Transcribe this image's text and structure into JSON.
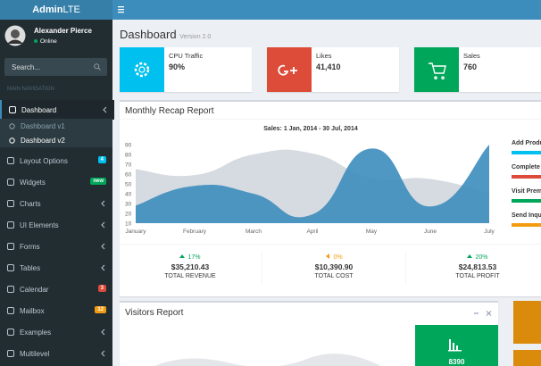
{
  "header": {
    "logo_bold": "Admin",
    "logo_light": "LTE"
  },
  "user": {
    "name": "Alexander Pierce",
    "status": "Online"
  },
  "search": {
    "placeholder": "Search..."
  },
  "nav": {
    "heading": "MAIN NAVIGATION",
    "items": [
      {
        "label": "Dashboard"
      },
      {
        "label": "Layout Options",
        "badge": "4"
      },
      {
        "label": "Widgets",
        "badge": "new"
      },
      {
        "label": "Charts"
      },
      {
        "label": "UI Elements"
      },
      {
        "label": "Forms"
      },
      {
        "label": "Tables"
      },
      {
        "label": "Calendar",
        "badge": "3"
      },
      {
        "label": "Mailbox",
        "badge": "12"
      },
      {
        "label": "Examples"
      },
      {
        "label": "Multilevel"
      }
    ],
    "subitems": [
      "Dashboard v1",
      "Dashboard v2"
    ]
  },
  "page": {
    "title": "Dashboard",
    "subtitle": "Version 2.0"
  },
  "info_boxes": [
    {
      "label": "CPU Traffic",
      "value": "90%"
    },
    {
      "label": "Likes",
      "value": "41,410"
    },
    {
      "label": "Sales",
      "value": "760"
    }
  ],
  "recap": {
    "title": "Monthly Recap Report",
    "goals": [
      "Add Produ",
      "Complete",
      "Visit Prem",
      "Send Inqu"
    ],
    "stats": [
      {
        "change": "17%",
        "amount": "$35,210.43",
        "label": "TOTAL REVENUE"
      },
      {
        "change": "0%",
        "amount": "$10,390.90",
        "label": "TOTAL COST"
      },
      {
        "change": "20%",
        "amount": "$24,813.53",
        "label": "TOTAL PROFIT"
      }
    ]
  },
  "visitors": {
    "title": "Visitors Report",
    "count": "8390"
  },
  "chart_data": {
    "type": "area",
    "title": "Sales: 1 Jan, 2014 - 30 Jul, 2014",
    "categories": [
      "January",
      "February",
      "March",
      "April",
      "May",
      "June",
      "July"
    ],
    "series": [
      {
        "color": "#d2d6de",
        "values": [
          65,
          59,
          80,
          81,
          56,
          55,
          40
        ]
      },
      {
        "color": "#3c8dbc",
        "values": [
          28,
          48,
          40,
          19,
          86,
          27,
          90
        ]
      }
    ],
    "ylim": [
      10,
      90
    ],
    "yticks": [
      10,
      20,
      30,
      40,
      50,
      60,
      70,
      80,
      90
    ],
    "grid": false
  }
}
